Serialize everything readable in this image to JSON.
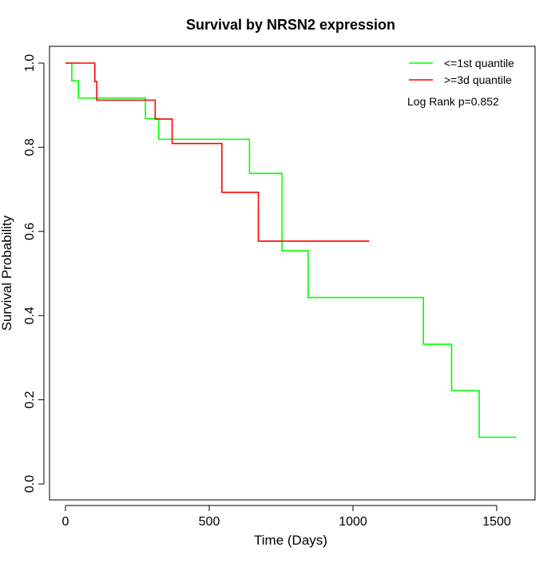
{
  "chart_data": {
    "type": "line",
    "title": "Survival by NRSN2 expression",
    "xlabel": "Time (Days)",
    "ylabel": "Survival Probability",
    "xlim": [
      -50,
      1650
    ],
    "ylim": [
      0,
      1
    ],
    "xticks": [
      0,
      500,
      1000,
      1500
    ],
    "yticks": [
      "0.0",
      "0.2",
      "0.4",
      "0.6",
      "0.8",
      "1.0"
    ],
    "legend_position": "top-right",
    "annotation": "Log Rank p=0.852",
    "series": [
      {
        "name": "<=1st quantile",
        "color": "#00ff00",
        "x": [
          0,
          22,
          45,
          278,
          324,
          640,
          753,
          753,
          844,
          1245,
          1343,
          1439,
          1569
        ],
        "y": [
          1.0,
          0.958,
          0.917,
          0.868,
          0.819,
          0.738,
          0.646,
          0.554,
          0.443,
          0.332,
          0.222,
          0.111,
          0.111
        ]
      },
      {
        "name": ">=3d quantile",
        "color": "#ff0000",
        "x": [
          0,
          102,
          109,
          312,
          371,
          544,
          671,
          1057
        ],
        "y": [
          1.0,
          0.956,
          0.912,
          0.867,
          0.809,
          0.693,
          0.577,
          0.577
        ]
      }
    ]
  }
}
